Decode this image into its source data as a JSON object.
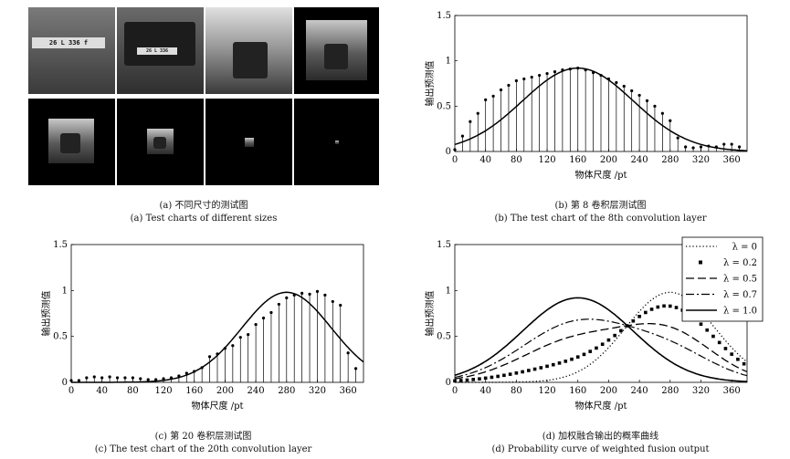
{
  "panel_a": {
    "caption_cn": "(a) 不同尺寸的测试图",
    "caption_en": "(a) Test charts of different sizes",
    "plate_text": "26 L 336 f"
  },
  "chart_data": [
    {
      "id": "b",
      "type": "line+stem",
      "caption_cn": "(b) 第 8 卷积层测试图",
      "caption_en": "(b) The test chart of the 8th convolution layer",
      "xlabel": "物体尺度 /pt",
      "ylabel": "输出预测值",
      "xlim": [
        0,
        380
      ],
      "ylim": [
        0,
        1.5
      ],
      "xticks": [
        0,
        40,
        80,
        120,
        160,
        200,
        240,
        280,
        320,
        360
      ],
      "yticks": [
        0,
        0.5,
        1,
        1.5
      ],
      "ytick_labels": [
        "0",
        "0.5",
        "1",
        "1.5"
      ],
      "curve": {
        "mu": 160,
        "sigma": 72,
        "peak": 0.92
      },
      "stem_x": [
        0,
        10,
        20,
        30,
        40,
        50,
        60,
        70,
        80,
        90,
        100,
        110,
        120,
        130,
        140,
        150,
        160,
        170,
        180,
        190,
        200,
        210,
        220,
        230,
        240,
        250,
        260,
        270,
        280,
        290,
        300,
        310,
        320,
        330,
        340,
        350,
        360,
        370
      ],
      "stem_y": [
        0.02,
        0.17,
        0.33,
        0.42,
        0.57,
        0.61,
        0.68,
        0.73,
        0.78,
        0.8,
        0.82,
        0.84,
        0.86,
        0.88,
        0.9,
        0.91,
        0.92,
        0.9,
        0.87,
        0.84,
        0.8,
        0.76,
        0.72,
        0.67,
        0.62,
        0.56,
        0.5,
        0.42,
        0.34,
        0.15,
        0.05,
        0.04,
        0.05,
        0.06,
        0.05,
        0.08,
        0.08,
        0.05
      ]
    },
    {
      "id": "c",
      "type": "line+stem",
      "caption_cn": "(c) 第 20 卷积层测试图",
      "caption_en": "(c) The test chart of the 20th convolution layer",
      "xlabel": "物体尺度 /pt",
      "ylabel": "输出预测值",
      "xlim": [
        0,
        380
      ],
      "ylim": [
        0,
        1.5
      ],
      "xticks": [
        0,
        40,
        80,
        120,
        160,
        200,
        240,
        280,
        320,
        360
      ],
      "yticks": [
        0,
        0.5,
        1,
        1.5
      ],
      "ytick_labels": [
        "0",
        "0.5",
        "1",
        "1.5"
      ],
      "curve": {
        "mu": 280,
        "sigma": 58,
        "peak": 0.98
      },
      "stem_x": [
        0,
        10,
        20,
        30,
        40,
        50,
        60,
        70,
        80,
        90,
        100,
        110,
        120,
        130,
        140,
        150,
        160,
        170,
        180,
        190,
        200,
        210,
        220,
        230,
        240,
        250,
        260,
        270,
        280,
        290,
        300,
        310,
        320,
        330,
        340,
        350,
        360,
        370
      ],
      "stem_y": [
        0.02,
        0.02,
        0.05,
        0.06,
        0.05,
        0.06,
        0.05,
        0.05,
        0.05,
        0.04,
        0.03,
        0.03,
        0.04,
        0.05,
        0.07,
        0.1,
        0.12,
        0.16,
        0.28,
        0.31,
        0.37,
        0.4,
        0.49,
        0.52,
        0.63,
        0.7,
        0.76,
        0.85,
        0.92,
        0.95,
        0.97,
        0.96,
        0.99,
        0.95,
        0.88,
        0.84,
        0.32,
        0.15
      ]
    },
    {
      "id": "d",
      "type": "line",
      "caption_cn": "(d) 加权融合输出的概率曲线",
      "caption_en": "(d) Probability curve of weighted fusion output",
      "xlabel": "物体尺度 /pt",
      "ylabel": "输出预测值",
      "xlim": [
        0,
        380
      ],
      "ylim": [
        0,
        1.5
      ],
      "xticks": [
        0,
        40,
        80,
        120,
        160,
        200,
        240,
        280,
        320,
        360
      ],
      "yticks": [
        0,
        0.5,
        1,
        1.5
      ],
      "ytick_labels": [
        "0",
        "0.5",
        "1",
        "1.5"
      ],
      "legend_position": "top-right",
      "series": [
        {
          "name": "λ = 0",
          "style": "dotted",
          "lambda": 0
        },
        {
          "name": "λ = 0.2",
          "style": "square-markers",
          "lambda": 0.2
        },
        {
          "name": "λ = 0.5",
          "style": "dashed",
          "lambda": 0.5
        },
        {
          "name": "λ = 0.7",
          "style": "dash-dot",
          "lambda": 0.7
        },
        {
          "name": "λ = 1.0",
          "style": "solid",
          "lambda": 1.0
        }
      ]
    }
  ]
}
